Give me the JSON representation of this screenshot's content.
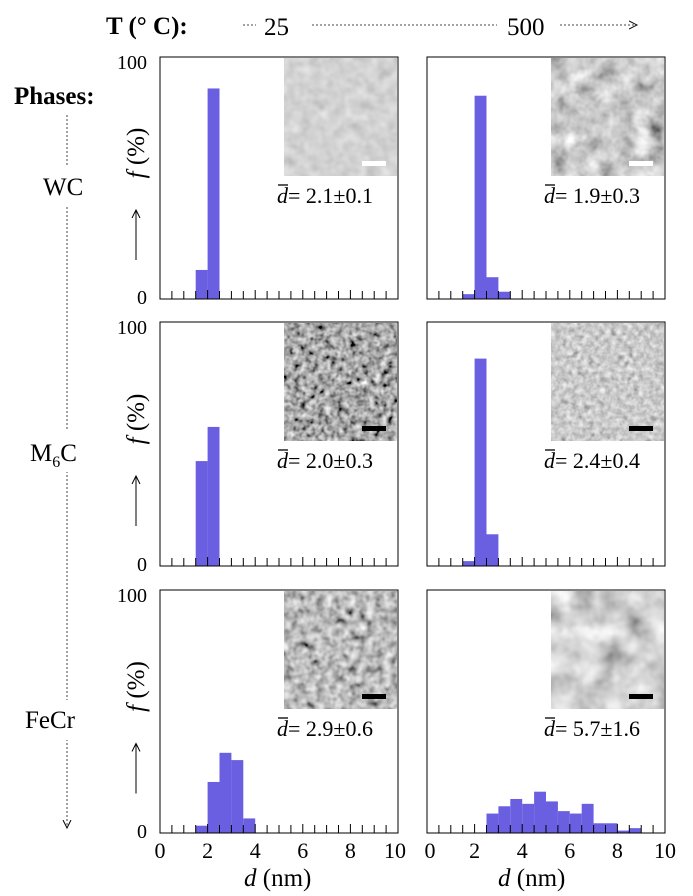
{
  "header": {
    "temperature_label": "T (° C):",
    "temp_start": "25",
    "temp_end": "500"
  },
  "phases_label": "Phases:",
  "y_axis_label": "f (%)",
  "x_axis_label": "d (nm)",
  "colors": {
    "bar": "#6a5fe0",
    "scale_bar_light": "#ffffff",
    "scale_bar_dark": "#000000"
  },
  "chart_data": [
    {
      "type": "bar",
      "phase": "WC",
      "temperature": "25",
      "bin_width": 0.5,
      "bins": [
        [
          1.5,
          12
        ],
        [
          2.0,
          87
        ]
      ],
      "mean_label": "= 2.1±0.1",
      "scale_bar": "white",
      "xlim": [
        0,
        10
      ],
      "ylim": [
        0,
        100
      ],
      "yticks": [
        "0",
        "100"
      ]
    },
    {
      "type": "bar",
      "phase": "WC",
      "temperature": "500",
      "bin_width": 0.5,
      "bins": [
        [
          1.5,
          2
        ],
        [
          2.0,
          84
        ],
        [
          2.5,
          9
        ],
        [
          3.0,
          3
        ]
      ],
      "mean_label": "= 1.9±0.3",
      "scale_bar": "white",
      "xlim": [
        0,
        10
      ],
      "ylim": [
        0,
        100
      ]
    },
    {
      "type": "bar",
      "phase": "M6C",
      "temperature": "25",
      "bin_width": 0.5,
      "bins": [
        [
          1.5,
          43
        ],
        [
          2.0,
          57
        ]
      ],
      "mean_label": "= 2.0±0.3",
      "scale_bar": "black",
      "xlim": [
        0,
        10
      ],
      "ylim": [
        0,
        100
      ],
      "yticks": [
        "0",
        "100"
      ]
    },
    {
      "type": "bar",
      "phase": "M6C",
      "temperature": "500",
      "bin_width": 0.5,
      "bins": [
        [
          1.5,
          2
        ],
        [
          2.0,
          85
        ],
        [
          2.5,
          13
        ]
      ],
      "mean_label": "= 2.4±0.4",
      "scale_bar": "black",
      "xlim": [
        0,
        10
      ],
      "ylim": [
        0,
        100
      ]
    },
    {
      "type": "bar",
      "phase": "FeCr",
      "temperature": "25",
      "bin_width": 0.5,
      "bins": [
        [
          1.5,
          3
        ],
        [
          2.0,
          21
        ],
        [
          2.5,
          33
        ],
        [
          3.0,
          30
        ],
        [
          3.5,
          6
        ]
      ],
      "mean_label": "= 2.9±0.6",
      "scale_bar": "black",
      "xlim": [
        0,
        10
      ],
      "ylim": [
        0,
        100
      ],
      "yticks": [
        "0",
        "100"
      ],
      "xticks": [
        "0",
        "2",
        "4",
        "6",
        "8",
        "10"
      ]
    },
    {
      "type": "bar",
      "phase": "FeCr",
      "temperature": "500",
      "bin_width": 0.5,
      "bins": [
        [
          2.5,
          8
        ],
        [
          3.0,
          11
        ],
        [
          3.5,
          14
        ],
        [
          4.0,
          12
        ],
        [
          4.5,
          17
        ],
        [
          5.0,
          13
        ],
        [
          5.5,
          9
        ],
        [
          6.0,
          8
        ],
        [
          6.5,
          12
        ],
        [
          7.0,
          4
        ],
        [
          7.5,
          4
        ],
        [
          8.0,
          1
        ],
        [
          8.5,
          2
        ]
      ],
      "mean_label": "= 5.7±1.6",
      "scale_bar": "black",
      "xlim": [
        0,
        10
      ],
      "ylim": [
        0,
        100
      ],
      "xticks": [
        "0",
        "2",
        "4",
        "6",
        "8",
        "10"
      ]
    }
  ]
}
